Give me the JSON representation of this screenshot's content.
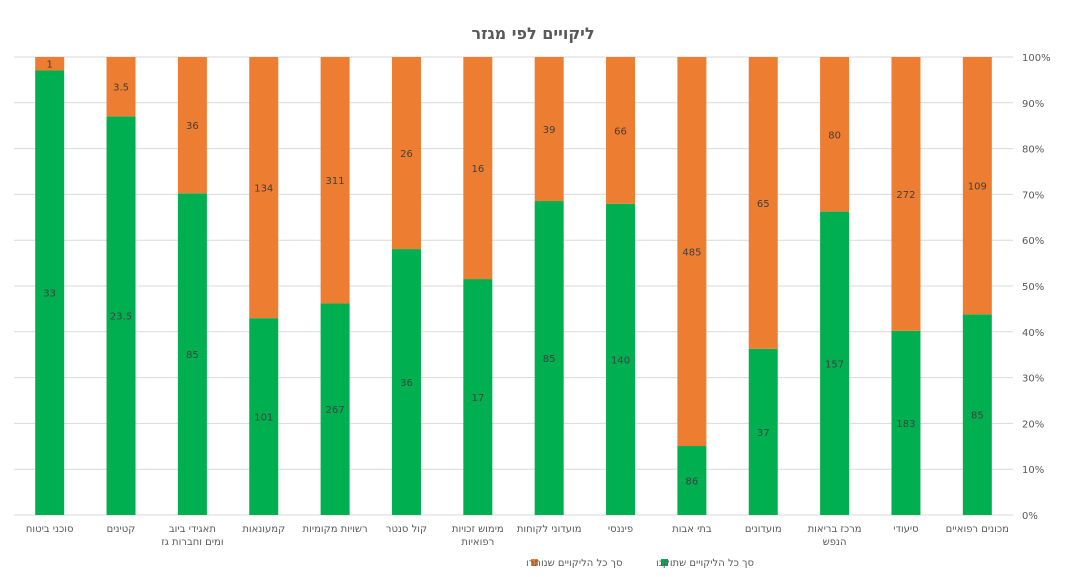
{
  "chart_data": {
    "type": "bar",
    "stacked": "percent",
    "title": "ליקויים לפי מגזר",
    "categories": [
      "סוכני ביטוח",
      "קטינים",
      "תאגידי ביוב ומים וחברות גז",
      "קמעונאות",
      "רשויות מקומיות",
      "קול סנטר",
      "מימוש זכויות רפואיות",
      "מועדוני לקוחות",
      "פיננסי",
      "בתי אבות",
      "מועדונים",
      "מרכז בריאות הנפש",
      "סיעודי",
      "מכונים רפואיים"
    ],
    "series": [
      {
        "name": "סך כל הליקויים שתוקנו",
        "color": "#00b050",
        "values": [
          33,
          23.5,
          85,
          101,
          267,
          36,
          17,
          85,
          140,
          86,
          37,
          157,
          183,
          85
        ],
        "labels": [
          "33",
          "23.5",
          "85",
          "101",
          "267",
          "36",
          "17",
          "85",
          "140",
          "86",
          "37",
          "157",
          "183",
          "85"
        ]
      },
      {
        "name": "סך כל הליקויים שנותרו",
        "color": "#ed7d31",
        "values": [
          1,
          3.5,
          36,
          134,
          311,
          26,
          16,
          39,
          66,
          485,
          65,
          80,
          272,
          109
        ],
        "labels": [
          "1",
          "3.5",
          "36",
          "134",
          "311",
          "26",
          "16",
          "39",
          "66",
          "485",
          "65",
          "80",
          "272",
          "109"
        ]
      }
    ],
    "y_axis": {
      "position": "right",
      "ticks": [
        "0%",
        "10%",
        "20%",
        "30%",
        "40%",
        "50%",
        "60%",
        "70%",
        "80%",
        "90%",
        "100%"
      ],
      "ylim": [
        0,
        100
      ]
    },
    "grid": true,
    "legend": "bottom-center"
  }
}
